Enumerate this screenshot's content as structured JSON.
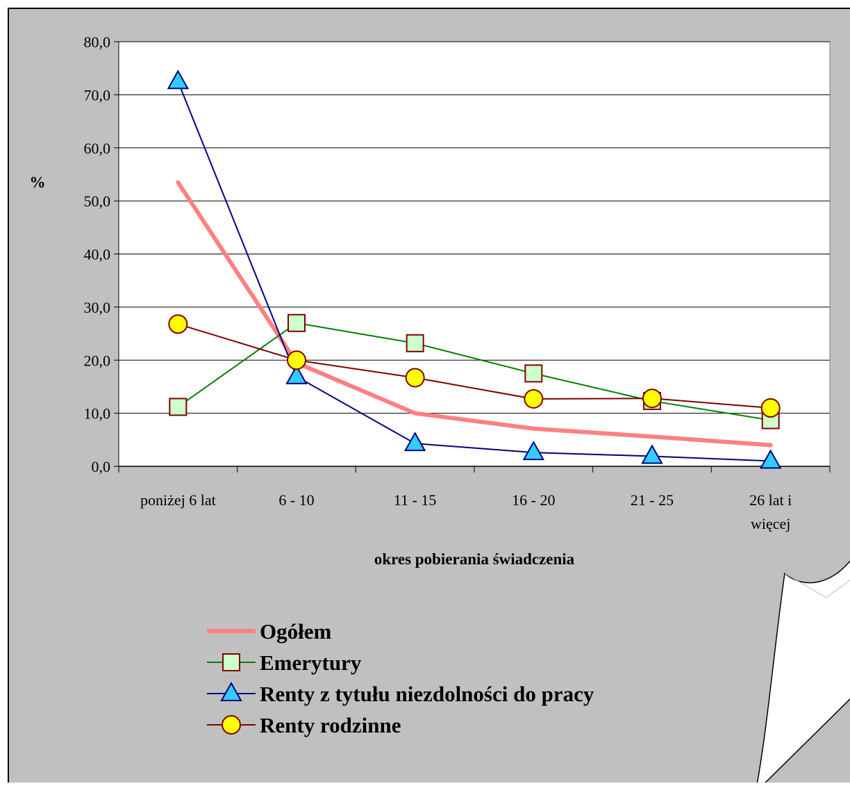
{
  "chart_data": {
    "type": "line",
    "ylabel": "%",
    "xlabel": "okres pobierania świadczenia",
    "ylim": [
      0,
      80
    ],
    "yticks": [
      "0,0",
      "10,0",
      "20,0",
      "30,0",
      "40,0",
      "50,0",
      "60,0",
      "70,0",
      "80,0"
    ],
    "categories": [
      [
        "poniżej 6 lat"
      ],
      [
        "6 - 10"
      ],
      [
        "11 - 15"
      ],
      [
        "16 - 20"
      ],
      [
        "21 - 25"
      ],
      [
        "26 lat i",
        "więcej"
      ]
    ],
    "grid": "horizontal",
    "legend_position": "bottom",
    "series": [
      {
        "name": "Ogółem",
        "marker": "none",
        "color": "#ff8080",
        "values": [
          53.5,
          19.5,
          10.0,
          7.1,
          5.6,
          4.0
        ]
      },
      {
        "name": "Emerytury",
        "marker": "square",
        "color": "#008000",
        "marker_fill": "#ccffcc",
        "marker_stroke": "#800000",
        "values": [
          11.2,
          27.0,
          23.2,
          17.5,
          12.3,
          8.7
        ]
      },
      {
        "name": "Renty z tytułu niezdolności do pracy",
        "marker": "triangle",
        "color": "#000080",
        "marker_fill": "#33ccff",
        "marker_stroke": "#000080",
        "values": [
          72.5,
          16.9,
          4.3,
          2.6,
          1.9,
          1.0
        ]
      },
      {
        "name": "Renty rodzinne",
        "marker": "circle",
        "color": "#800000",
        "marker_fill": "#ffff00",
        "marker_stroke": "#800000",
        "values": [
          26.8,
          20.0,
          16.7,
          12.7,
          12.8,
          11.0
        ]
      }
    ]
  }
}
